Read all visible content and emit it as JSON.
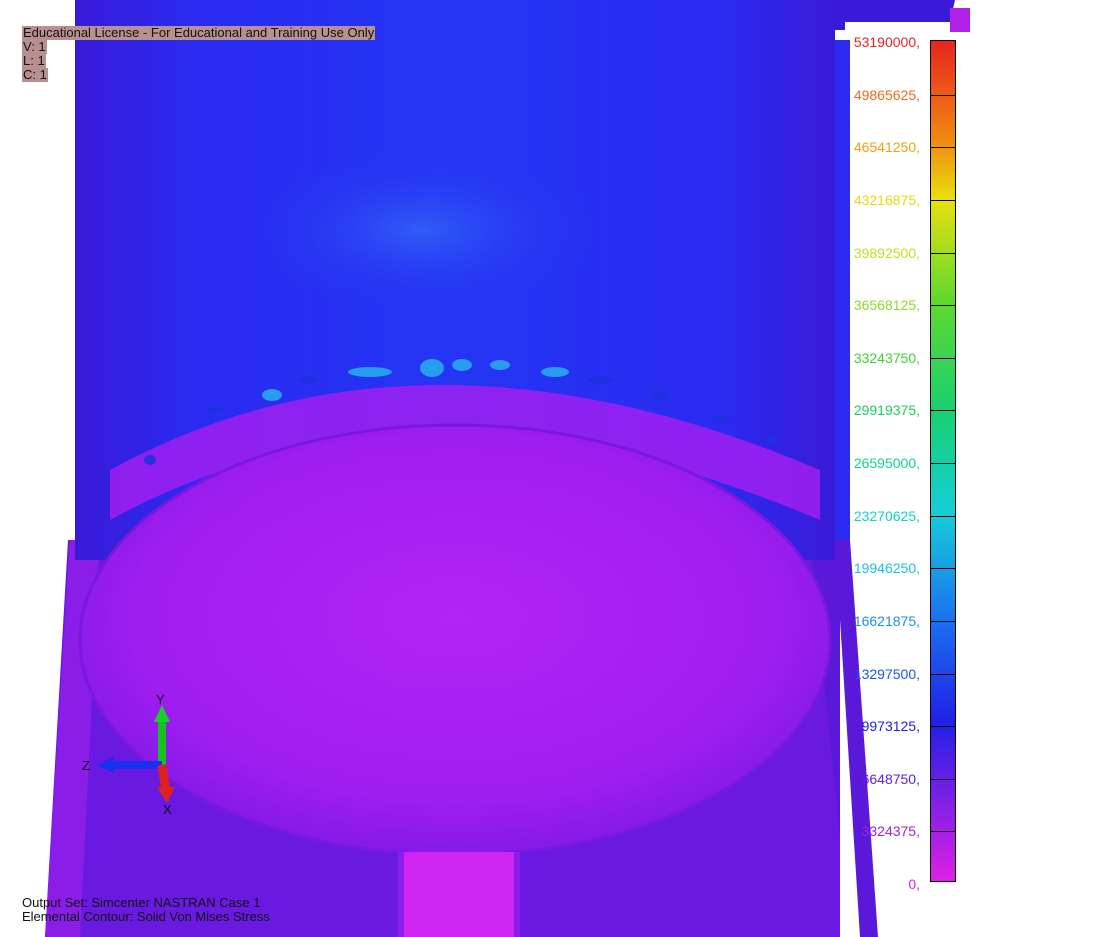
{
  "license": {
    "title": "Educational License - For Educational and Training Use Only",
    "view": "V: 1",
    "layer": "L: 1",
    "color": "C: 1"
  },
  "legend": {
    "labels": [
      {
        "text": "53190000,",
        "color": "#e8231f"
      },
      {
        "text": "49865625,",
        "color": "#ee6a1a"
      },
      {
        "text": "46541250,",
        "color": "#f0a012"
      },
      {
        "text": "43216875,",
        "color": "#e8d80e"
      },
      {
        "text": "39892500,",
        "color": "#c4e020"
      },
      {
        "text": "36568125,",
        "color": "#8fd92a"
      },
      {
        "text": "33243750,",
        "color": "#40d035"
      },
      {
        "text": "29919375,",
        "color": "#18d060"
      },
      {
        "text": "26595000,",
        "color": "#12d09a"
      },
      {
        "text": "23270625,",
        "color": "#14cfce"
      },
      {
        "text": "19946250,",
        "color": "#16bfe6"
      },
      {
        "text": "16621875,",
        "color": "#1a8ff0"
      },
      {
        "text": "13297500,",
        "color": "#1c55ee"
      },
      {
        "text": "9973125,",
        "color": "#2020e6"
      },
      {
        "text": "6648750,",
        "color": "#5a20e6"
      },
      {
        "text": "3324375,",
        "color": "#a020e6"
      },
      {
        "text": "0,",
        "color": "#e020e6"
      }
    ]
  },
  "triad": {
    "y_label": "Y",
    "z_label": "Z",
    "x_label": "X"
  },
  "footer": {
    "output_set": "Output Set: Simcenter NASTRAN Case 1",
    "contour": "Elemental Contour: Solid Von Mises Stress"
  }
}
